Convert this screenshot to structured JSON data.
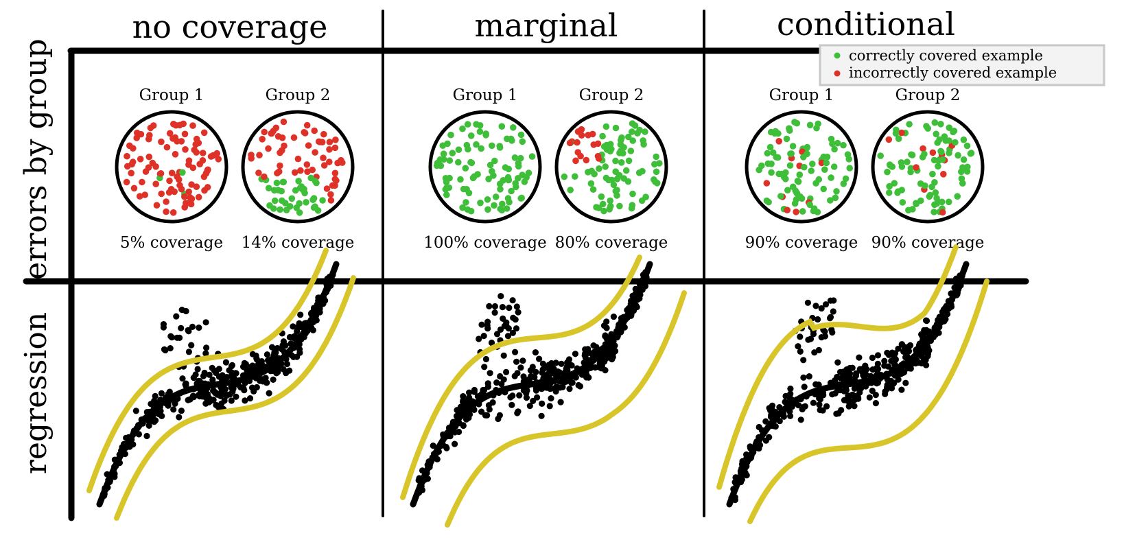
{
  "columns": [
    {
      "label": "no coverage"
    },
    {
      "label": "marginal"
    },
    {
      "label": "conditional"
    }
  ],
  "rows": {
    "top": "errors by group",
    "bottom": "regression"
  },
  "legend": {
    "correct": "correctly covered example",
    "incorrect": "incorrectly covered example"
  },
  "colors": {
    "correct": "#3fbe3a",
    "incorrect": "#de3127",
    "interval": "#d8c52a",
    "fit": "#000000",
    "points": "#000000"
  },
  "panels": [
    {
      "groups": [
        {
          "label": "Group 1",
          "coverage_text": "5% coverage",
          "coverage": 0.05
        },
        {
          "label": "Group 2",
          "coverage_text": "14% coverage",
          "coverage": 0.14
        }
      ]
    },
    {
      "groups": [
        {
          "label": "Group 1",
          "coverage_text": "100% coverage",
          "coverage": 1.0
        },
        {
          "label": "Group 2",
          "coverage_text": "80% coverage",
          "coverage": 0.8
        }
      ]
    },
    {
      "groups": [
        {
          "label": "Group 1",
          "coverage_text": "90% coverage",
          "coverage": 0.9
        },
        {
          "label": "Group 2",
          "coverage_text": "90% coverage",
          "coverage": 0.9
        }
      ]
    }
  ]
}
